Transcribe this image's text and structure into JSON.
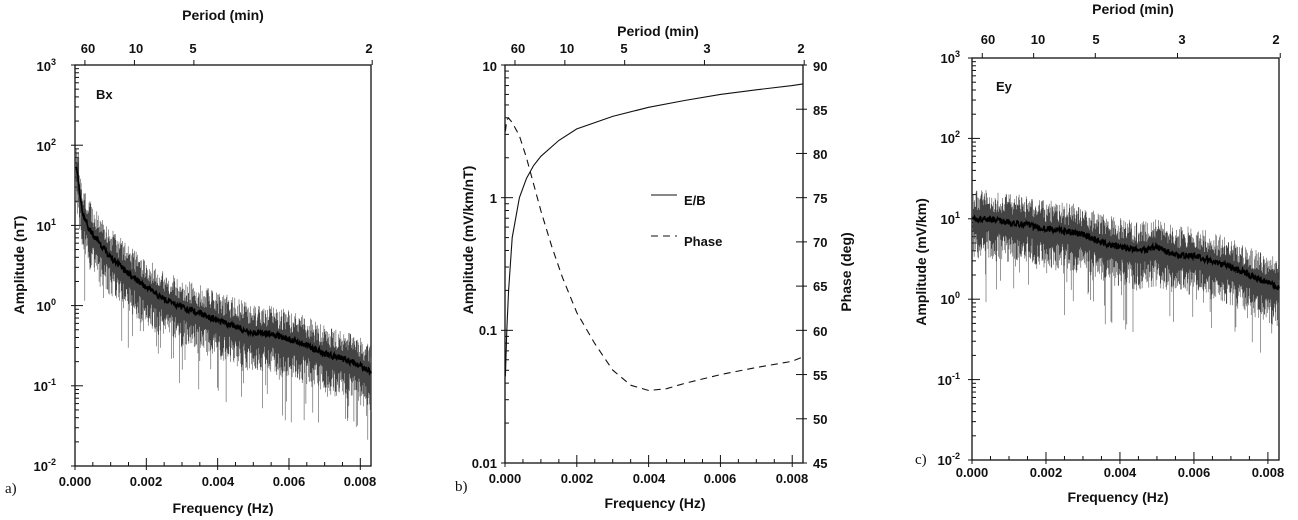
{
  "chart_data": [
    {
      "type": "line",
      "panel_label": "a)",
      "title": "Bx",
      "xlabel": "Frequency (Hz)",
      "ylabel": "Amplitude (nT)",
      "top_axis_label": "Period (min)",
      "top_ticks": [
        {
          "label": "60",
          "period_min": 60
        },
        {
          "label": "10",
          "period_min": 10
        },
        {
          "label": "5",
          "period_min": 5
        },
        {
          "label": "2",
          "period_min": 2
        }
      ],
      "xlim": [
        0,
        0.0083
      ],
      "ylim": [
        0.01,
        1000
      ],
      "yscale": "log",
      "x_ticks": [
        "0.000",
        "0.002",
        "0.004",
        "0.006",
        "0.008"
      ],
      "y_ticks": [
        {
          "base": "10",
          "exp": "-2"
        },
        {
          "base": "10",
          "exp": "-1"
        },
        {
          "base": "10",
          "exp": "0"
        },
        {
          "base": "10",
          "exp": "1"
        },
        {
          "base": "10",
          "exp": "2"
        },
        {
          "base": "10",
          "exp": "3"
        }
      ],
      "series": [
        {
          "style": "noisy-spectrum",
          "x": [
            5e-05,
            0.0002,
            0.0004,
            0.0007,
            0.001,
            0.0015,
            0.002,
            0.0025,
            0.003,
            0.0035,
            0.004,
            0.0045,
            0.005,
            0.0055,
            0.006,
            0.0065,
            0.007,
            0.0075,
            0.008,
            0.0083
          ],
          "y": [
            50,
            15,
            9,
            6,
            4,
            2.5,
            1.7,
            1.2,
            0.95,
            0.8,
            0.65,
            0.55,
            0.45,
            0.45,
            0.38,
            0.32,
            0.25,
            0.22,
            0.18,
            0.15
          ]
        }
      ]
    },
    {
      "type": "line",
      "panel_label": "b)",
      "xlabel": "Frequency (Hz)",
      "ylabel": "Amplitude (mV/km/nT)",
      "ylabel_right": "Phase (deg)",
      "top_axis_label": "Period (min)",
      "top_ticks": [
        {
          "label": "60",
          "period_min": 60
        },
        {
          "label": "10",
          "period_min": 10
        },
        {
          "label": "5",
          "period_min": 5
        },
        {
          "label": "3",
          "period_min": 3
        },
        {
          "label": "2",
          "period_min": 2
        }
      ],
      "xlim": [
        0,
        0.0083
      ],
      "ylim": [
        0.01,
        10
      ],
      "yscale": "log",
      "ylim_right": [
        45,
        90
      ],
      "x_ticks": [
        "0.000",
        "0.002",
        "0.004",
        "0.006",
        "0.008"
      ],
      "y_ticks": [
        "0.01",
        "0.1",
        "1",
        "10"
      ],
      "y_ticks_right": [
        "45",
        "50",
        "55",
        "60",
        "65",
        "70",
        "75",
        "80",
        "85",
        "90"
      ],
      "legend": [
        {
          "label": "E/B",
          "dash": "solid"
        },
        {
          "label": "Phase",
          "dash": "dashed"
        }
      ],
      "series": [
        {
          "name": "E/B",
          "axis": "left",
          "dash": "solid",
          "x": [
            1e-05,
            5e-05,
            0.0001,
            0.0002,
            0.0004,
            0.0006,
            0.0008,
            0.001,
            0.0015,
            0.002,
            0.003,
            0.004,
            0.005,
            0.006,
            0.007,
            0.008,
            0.0083
          ],
          "y": [
            0.045,
            0.1,
            0.2,
            0.5,
            1.0,
            1.4,
            1.75,
            2.05,
            2.7,
            3.3,
            4.1,
            4.8,
            5.4,
            6.0,
            6.5,
            7.0,
            7.2
          ]
        },
        {
          "name": "Phase",
          "axis": "right",
          "dash": "dashed",
          "x": [
            1e-05,
            5e-05,
            0.0001,
            0.0002,
            0.0004,
            0.0006,
            0.0008,
            0.001,
            0.0013,
            0.0016,
            0.002,
            0.0025,
            0.003,
            0.0035,
            0.004,
            0.0045,
            0.005,
            0.006,
            0.007,
            0.008,
            0.0083
          ],
          "y": [
            82.5,
            83.8,
            84.0,
            83.5,
            82.0,
            79.5,
            76.5,
            73.5,
            69.5,
            66.0,
            62.0,
            58.5,
            55.5,
            53.8,
            53.2,
            53.4,
            54.0,
            55.0,
            55.8,
            56.5,
            57.0
          ]
        }
      ]
    },
    {
      "type": "line",
      "panel_label": "c)",
      "title": "Ey",
      "xlabel": "Frequency (Hz)",
      "ylabel": "Amplitude (mV/km)",
      "top_axis_label": "Period (min)",
      "top_ticks": [
        {
          "label": "60",
          "period_min": 60
        },
        {
          "label": "10",
          "period_min": 10
        },
        {
          "label": "5",
          "period_min": 5
        },
        {
          "label": "3",
          "period_min": 3
        },
        {
          "label": "2",
          "period_min": 2
        }
      ],
      "xlim": [
        0,
        0.0083
      ],
      "ylim": [
        0.01,
        1000
      ],
      "yscale": "log",
      "x_ticks": [
        "0.000",
        "0.002",
        "0.004",
        "0.006",
        "0.008"
      ],
      "y_ticks": [
        {
          "base": "10",
          "exp": "-2"
        },
        {
          "base": "10",
          "exp": "-1"
        },
        {
          "base": "10",
          "exp": "0"
        },
        {
          "base": "10",
          "exp": "1"
        },
        {
          "base": "10",
          "exp": "2"
        },
        {
          "base": "10",
          "exp": "3"
        }
      ],
      "series": [
        {
          "style": "noisy-spectrum",
          "x": [
            5e-05,
            0.0005,
            0.001,
            0.0015,
            0.002,
            0.0025,
            0.003,
            0.0035,
            0.004,
            0.0045,
            0.005,
            0.0055,
            0.006,
            0.0065,
            0.007,
            0.0075,
            0.008,
            0.0083
          ],
          "y": [
            10,
            10,
            9,
            8.5,
            7.5,
            7,
            6.5,
            5,
            4.5,
            4,
            4.5,
            3.5,
            3.5,
            3,
            2.5,
            2,
            1.6,
            1.4
          ]
        }
      ]
    }
  ]
}
